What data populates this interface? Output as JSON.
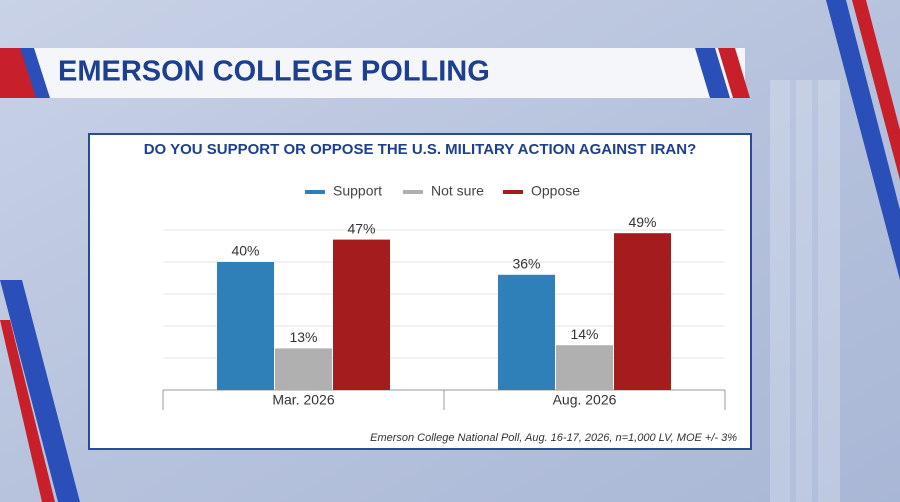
{
  "header": {
    "title": "EMERSON COLLEGE POLLING"
  },
  "chart_data": {
    "type": "bar",
    "title": "DO YOU SUPPORT OR OPPOSE THE U.S. MILITARY ACTION AGAINST IRAN?",
    "categories": [
      "Mar. 2026",
      "Aug. 2026"
    ],
    "series": [
      {
        "name": "Support",
        "color": "#2f7fb8",
        "values": [
          40,
          36
        ],
        "value_labels": [
          "40%",
          "36%"
        ]
      },
      {
        "name": "Not sure",
        "color": "#b0b0b0",
        "values": [
          13,
          14
        ],
        "value_labels": [
          "13%",
          "14%"
        ]
      },
      {
        "name": "Oppose",
        "color": "#a51c1f",
        "values": [
          47,
          49
        ],
        "value_labels": [
          "47%",
          "49%"
        ]
      }
    ],
    "ylim": [
      0,
      50
    ],
    "yticks": [
      0,
      10,
      20,
      30,
      40,
      50
    ],
    "grid": true,
    "note": "Emerson College National Poll, Aug. 16-17, 2026, n=1,000 LV, MOE +/- 3%"
  }
}
